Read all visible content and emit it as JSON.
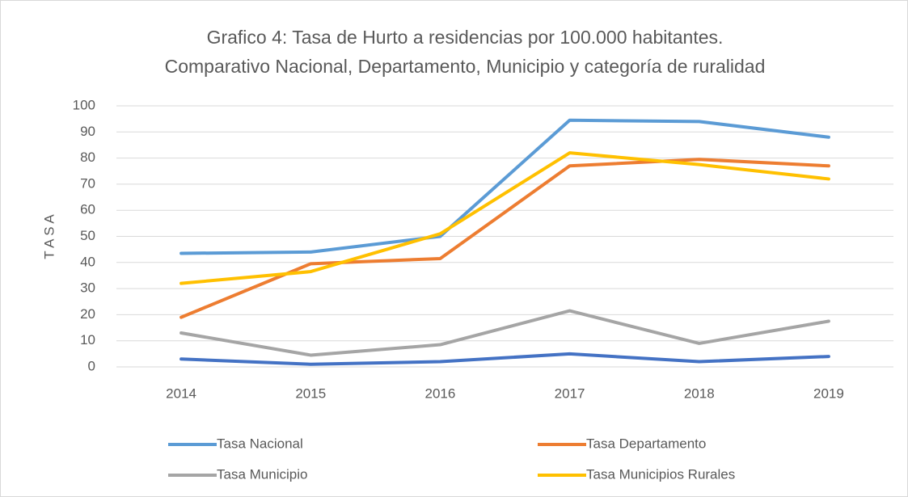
{
  "chart_data": {
    "type": "line",
    "title": "Grafico 4: Tasa de Hurto a residencias por 100.000 habitantes.",
    "subtitle": "Comparativo Nacional, Departamento, Municipio y categoría de ruralidad",
    "ylabel": "T A S A",
    "categories": [
      "2014",
      "2015",
      "2016",
      "2017",
      "2018",
      "2019"
    ],
    "series": [
      {
        "name": "Tasa Nacional",
        "color": "#5b9bd5",
        "values": [
          43.5,
          44,
          50,
          94.5,
          94,
          88
        ]
      },
      {
        "name": "Tasa Departamento",
        "color": "#ed7d31",
        "values": [
          19,
          39.5,
          41.5,
          77,
          79.5,
          77
        ]
      },
      {
        "name": "Tasa Municipio",
        "color": "#a5a5a5",
        "values": [
          13,
          4.5,
          8.5,
          21.5,
          9,
          17.5
        ]
      },
      {
        "name": "Tasa Municipios Rurales",
        "color": "#ffc000",
        "values": [
          32,
          36.5,
          51,
          82,
          77.5,
          72
        ]
      },
      {
        "color": "#4472c4",
        "values": [
          3,
          1,
          2,
          5,
          2,
          4
        ]
      }
    ],
    "ylim": [
      0,
      100
    ],
    "yticks": [
      0,
      10,
      20,
      30,
      40,
      50,
      60,
      70,
      80,
      90,
      100
    ],
    "grid": true,
    "legend": "bottom"
  }
}
